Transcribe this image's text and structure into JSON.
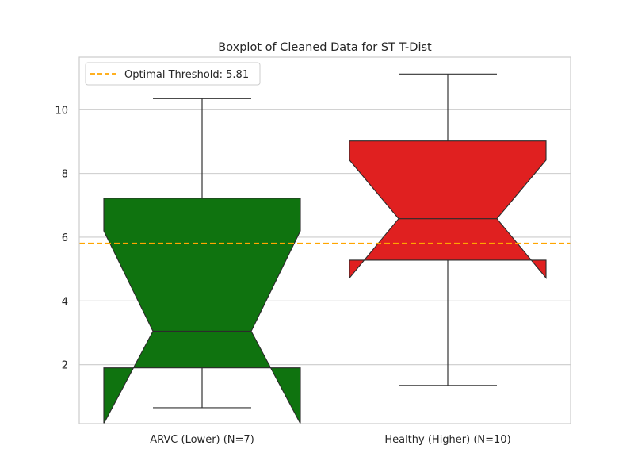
{
  "chart_data": {
    "type": "boxplot",
    "title": "Boxplot of Cleaned Data for ST T-Dist",
    "xlabel": "",
    "ylabel": "",
    "ylim": [
      0.15,
      11.65
    ],
    "yticks": [
      "2",
      "4",
      "6",
      "8",
      "10"
    ],
    "grid": "horizontal",
    "legend_position": "top-left",
    "categories": [
      "ARVC (Lower) (N=7)",
      "Healthy (Higher) (N=10)"
    ],
    "boxes": [
      {
        "category": "ARVC (Lower) (N=7)",
        "color": "#0f730f",
        "whisker_low": 0.65,
        "q1": 1.9,
        "median": 3.05,
        "q3": 7.22,
        "whisker_high": 10.35,
        "notch_low": 0.05,
        "notch_high": 6.2
      },
      {
        "category": "Healthy (Higher) (N=10)",
        "color": "#e02020",
        "whisker_low": 1.35,
        "q1": 5.28,
        "median": 6.58,
        "q3": 9.02,
        "whisker_high": 11.12,
        "notch_low": 4.72,
        "notch_high": 8.42
      }
    ],
    "threshold": {
      "label": "Optimal Threshold: 5.81",
      "value": 5.81,
      "color": "#ffa500",
      "style": "dashed"
    }
  }
}
